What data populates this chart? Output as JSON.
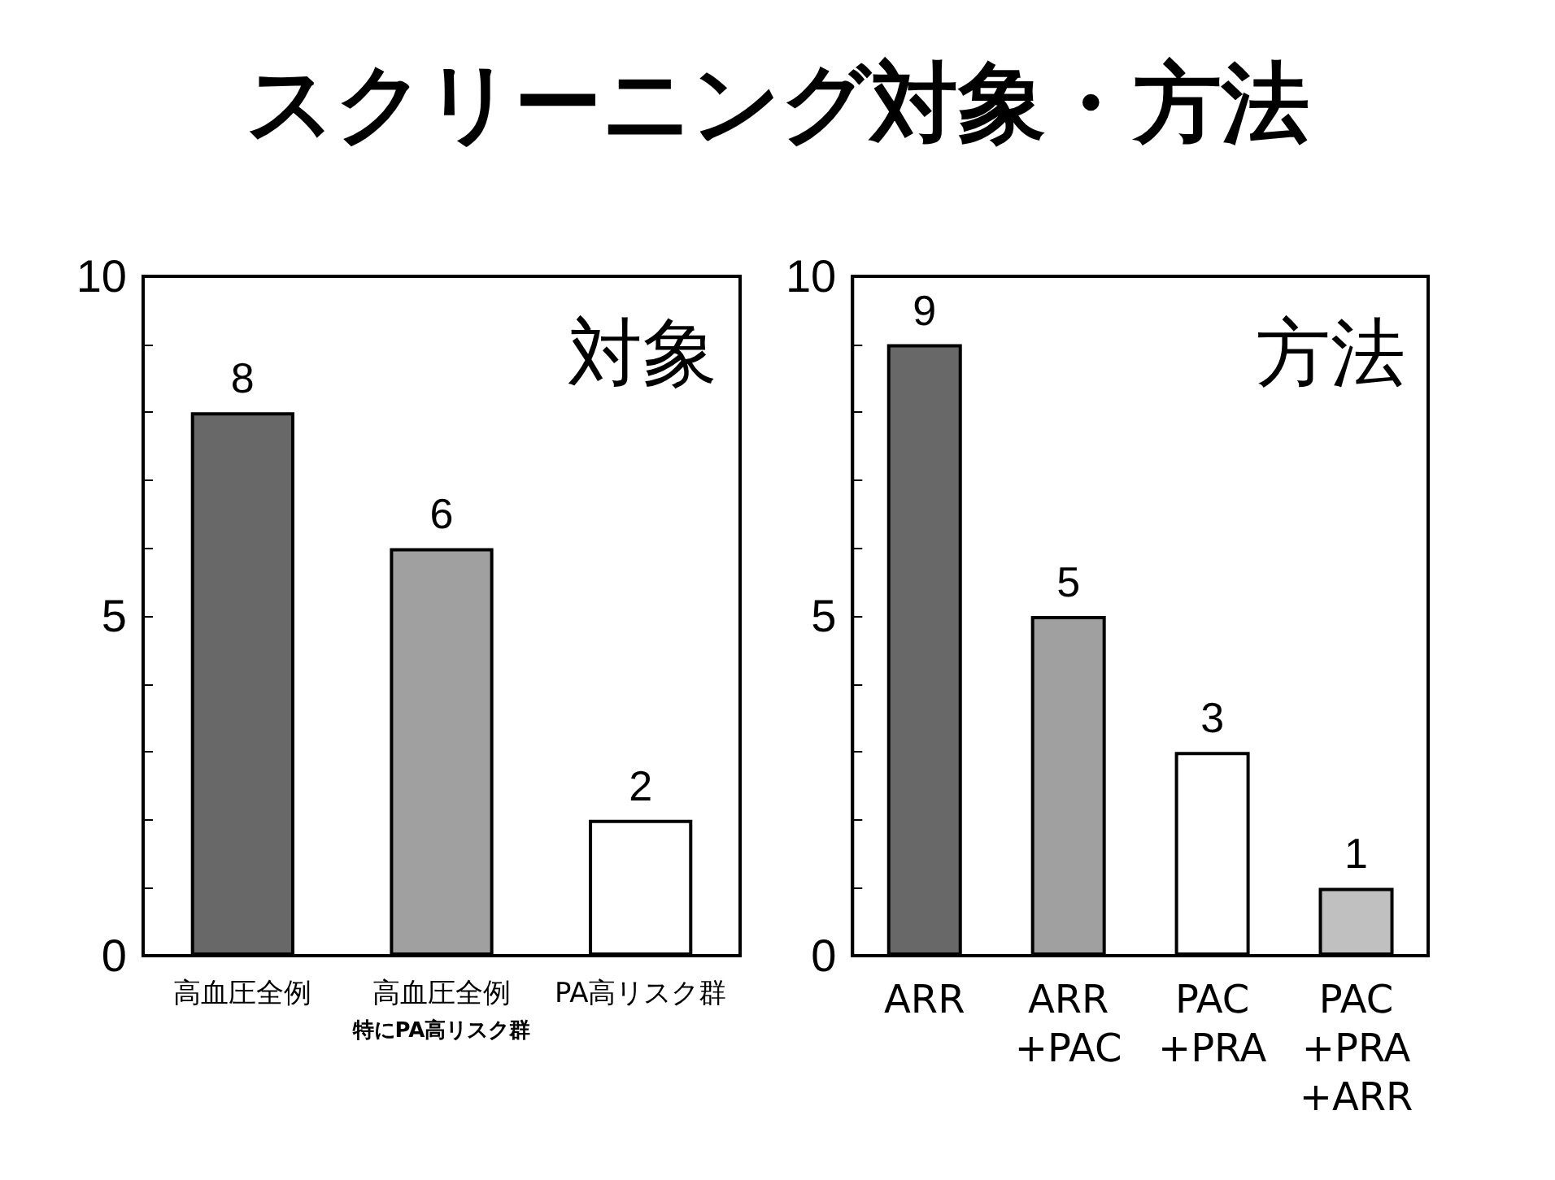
{
  "chart_data": [
    {
      "type": "bar",
      "title": "スクリーニング対象・方法",
      "annotations": [
        "対象",
        "特にPA高リスク群"
      ],
      "categories": [
        "高血圧全例",
        "高血圧全例",
        "PA高リスク群"
      ],
      "values": [
        8,
        6,
        2
      ],
      "colors": [
        "#686868",
        "#a0a0a0",
        "#ffffff"
      ],
      "ylim": [
        0,
        10
      ],
      "yticks": [
        0,
        {
          "value": 1,
          "label": null
        },
        {
          "value": 2,
          "label": null
        },
        {
          "value": 3,
          "label": null
        },
        {
          "value": 4,
          "label": null
        },
        5,
        {
          "value": 6,
          "label": null
        },
        {
          "value": 7,
          "label": null
        },
        {
          "value": 8,
          "label": null
        },
        {
          "value": 9,
          "label": null
        },
        10
      ],
      "data_labels": true,
      "grid": false
    },
    {
      "type": "bar",
      "annotations": [
        "方法"
      ],
      "categories": [
        "ARR",
        "ARR\n+PAC",
        "PAC\n+PRA",
        "PAC\n+PRA\n+ARR"
      ],
      "values": [
        9,
        5,
        3,
        1
      ],
      "colors": [
        "#686868",
        "#a0a0a0",
        "#ffffff",
        "#c0c0c0"
      ],
      "ylim": [
        0,
        10
      ],
      "yticks": [
        0,
        {
          "value": 1,
          "label": null
        },
        {
          "value": 2,
          "label": null
        },
        {
          "value": 3,
          "label": null
        },
        {
          "value": 4,
          "label": null
        },
        5,
        {
          "value": 6,
          "label": null
        },
        {
          "value": 7,
          "label": null
        },
        {
          "value": 8,
          "label": null
        },
        {
          "value": 9,
          "label": null
        },
        10
      ],
      "data_labels": true,
      "grid": false
    }
  ]
}
